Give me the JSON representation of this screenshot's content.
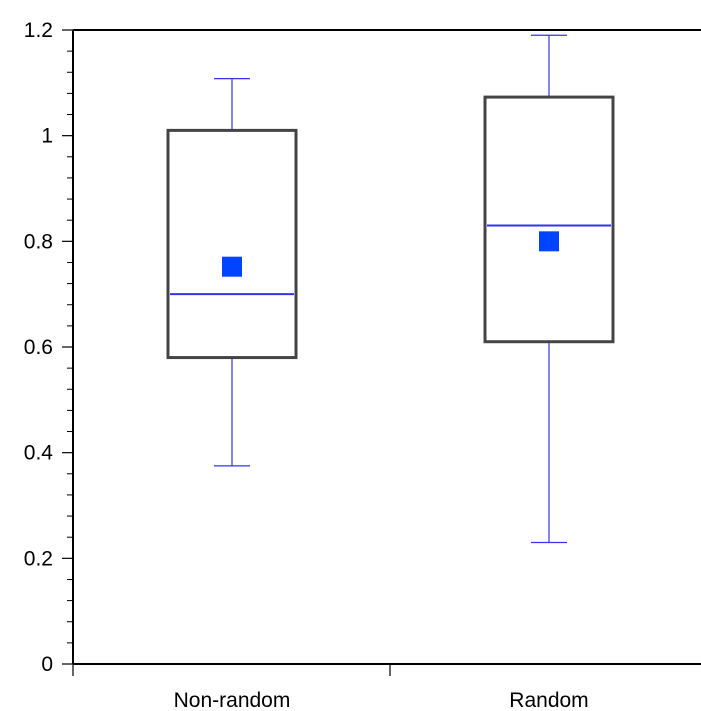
{
  "chart_data": {
    "type": "box",
    "title": "",
    "xlabel": "",
    "ylabel": "",
    "ylim": [
      0,
      1.2
    ],
    "yticks": [
      "0",
      "0.2",
      "0.4",
      "0.6",
      "0.8",
      "1",
      "1.2"
    ],
    "minor_ticks_per_major": 4,
    "grid": false,
    "categories": [
      "Non-random",
      "Random"
    ],
    "boxes": [
      {
        "category": "Non-random",
        "min": 0.375,
        "q1": 0.58,
        "median": 0.7,
        "q3": 1.01,
        "max": 1.108,
        "mean": 0.752
      },
      {
        "category": "Random",
        "min": 0.23,
        "q1": 0.61,
        "median": 0.83,
        "q3": 1.073,
        "max": 1.19,
        "mean": 0.8
      }
    ],
    "colors": {
      "box_outline": "#444444",
      "whisker": "#3333ee",
      "median": "#3333ee",
      "mean_marker": "#0044ff",
      "axis": "#000000"
    }
  }
}
